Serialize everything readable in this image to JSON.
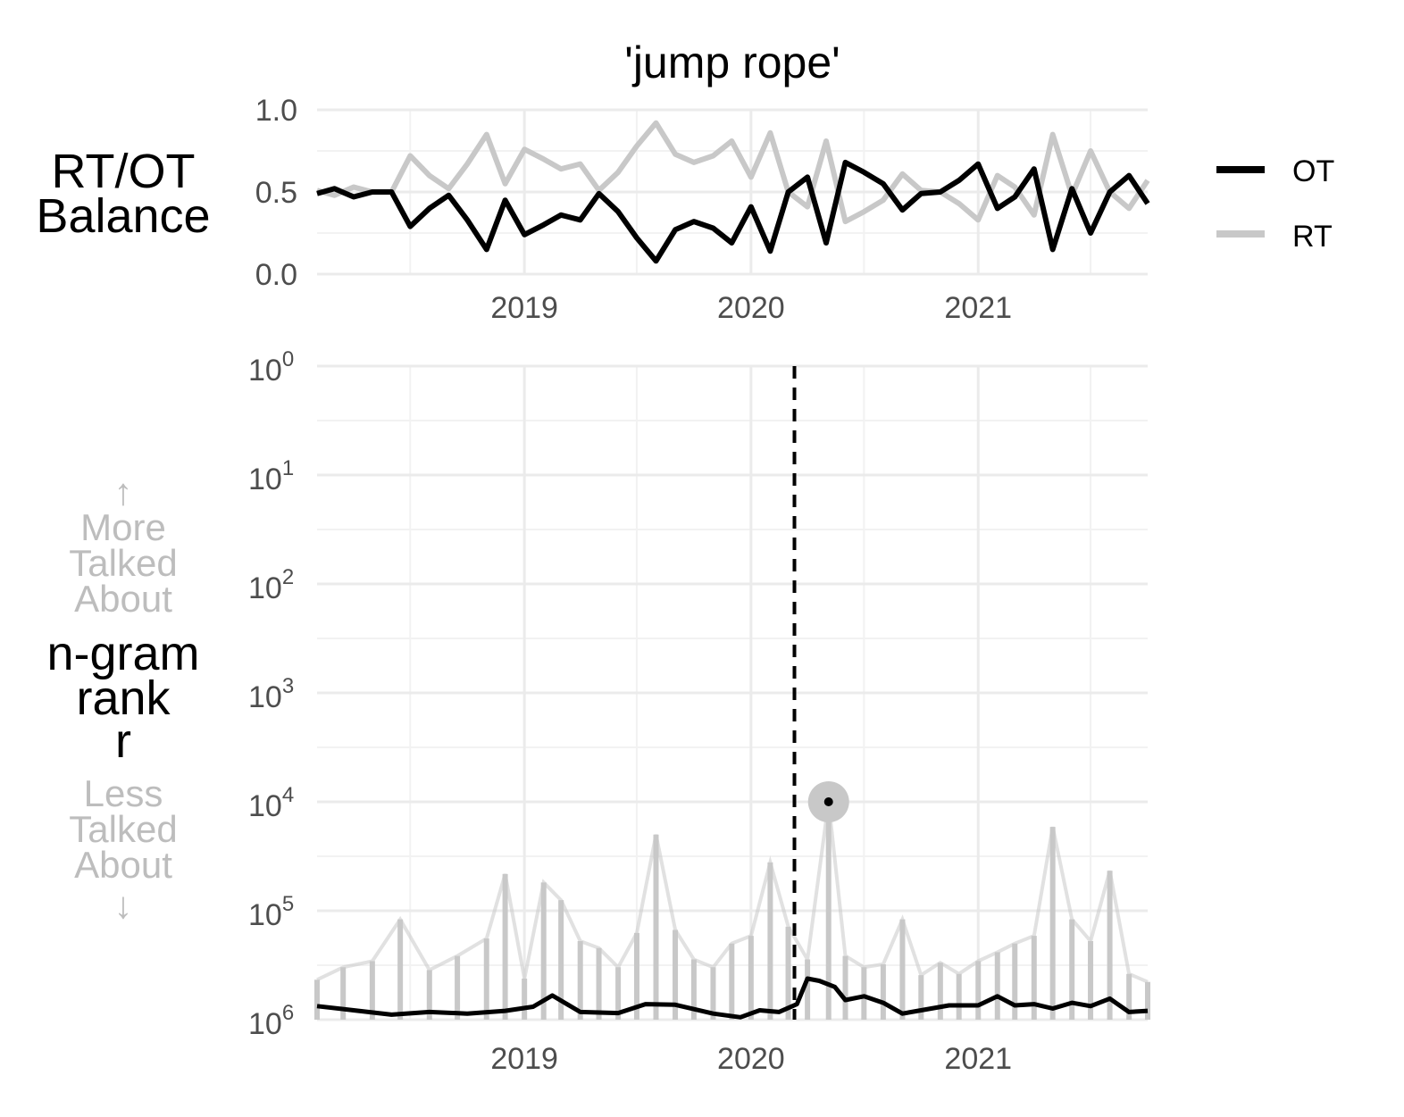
{
  "chart_data": [
    {
      "type": "line",
      "title": "'jump rope'",
      "ylabel_lines": [
        "RT/OT",
        "Balance"
      ],
      "ylim": [
        0,
        1
      ],
      "y_ticks": [
        "0.0",
        "0.5",
        "1.0"
      ],
      "y_tick_values": [
        0,
        0.5,
        1
      ],
      "xlim": [
        "2018-02-01",
        "2021-10-01"
      ],
      "x_ticks": [
        "2019",
        "2020",
        "2021"
      ],
      "x_tick_dates": [
        "2019-01-01",
        "2020-01-01",
        "2021-01-01"
      ],
      "grid": true,
      "legend_position": "right",
      "x": [
        "2018-02",
        "2018-03",
        "2018-04",
        "2018-05",
        "2018-06",
        "2018-07",
        "2018-08",
        "2018-09",
        "2018-10",
        "2018-11",
        "2018-12",
        "2019-01",
        "2019-02",
        "2019-03",
        "2019-04",
        "2019-05",
        "2019-06",
        "2019-07",
        "2019-08",
        "2019-09",
        "2019-10",
        "2019-11",
        "2019-12",
        "2020-01",
        "2020-02",
        "2020-03",
        "2020-04",
        "2020-05",
        "2020-06",
        "2020-07",
        "2020-08",
        "2020-09",
        "2020-10",
        "2020-11",
        "2020-12",
        "2021-01",
        "2021-02",
        "2021-03",
        "2021-04",
        "2021-05",
        "2021-06",
        "2021-07",
        "2021-08",
        "2021-09",
        "2021-10"
      ],
      "series": [
        {
          "name": "OT",
          "color": "#000000",
          "values": [
            0.49,
            0.52,
            0.47,
            0.5,
            0.5,
            0.29,
            0.4,
            0.48,
            0.33,
            0.15,
            0.45,
            0.24,
            0.3,
            0.36,
            0.33,
            0.49,
            0.38,
            0.22,
            0.08,
            0.27,
            0.32,
            0.28,
            0.19,
            0.41,
            0.14,
            0.5,
            0.59,
            0.19,
            0.68,
            0.62,
            0.55,
            0.39,
            0.49,
            0.5,
            0.57,
            0.67,
            0.4,
            0.47,
            0.64,
            0.15,
            0.52,
            0.25,
            0.5,
            0.6,
            0.43
          ]
        },
        {
          "name": "RT",
          "color": "#c8c8c8",
          "values": [
            0.51,
            0.48,
            0.53,
            0.5,
            0.5,
            0.72,
            0.6,
            0.52,
            0.67,
            0.85,
            0.55,
            0.76,
            0.7,
            0.64,
            0.67,
            0.51,
            0.62,
            0.78,
            0.92,
            0.73,
            0.68,
            0.72,
            0.81,
            0.59,
            0.86,
            0.5,
            0.41,
            0.81,
            0.32,
            0.38,
            0.45,
            0.61,
            0.51,
            0.5,
            0.43,
            0.33,
            0.6,
            0.53,
            0.36,
            0.85,
            0.48,
            0.75,
            0.5,
            0.4,
            0.57
          ]
        }
      ]
    },
    {
      "type": "line",
      "ylabel_top": [
        "↑",
        "More",
        "Talked",
        "About"
      ],
      "ylabel_lines": [
        "n-gram",
        "rank",
        "r"
      ],
      "ylabel_bottom": [
        "Less",
        "Talked",
        "About",
        "↓"
      ],
      "y_scale": "log10",
      "y_reversed": true,
      "ylim": [
        1,
        1000000
      ],
      "y_tick_bases": [
        "10",
        "10",
        "10",
        "10",
        "10",
        "10",
        "10"
      ],
      "y_tick_exponents": [
        "0",
        "1",
        "2",
        "3",
        "4",
        "5",
        "6"
      ],
      "xlim": [
        "2018-02-01",
        "2021-10-01"
      ],
      "x_ticks": [
        "2019",
        "2020",
        "2021"
      ],
      "x_tick_dates": [
        "2019-01-01",
        "2020-01-01",
        "2021-01-01"
      ],
      "grid": true,
      "vline_date": "2020-03-11",
      "peak_marker": {
        "date": "2020-05-05",
        "rank": 10000
      },
      "series": [
        {
          "name": "OT",
          "color": "#000000",
          "x": [
            "2018-02-01",
            "2018-04-01",
            "2018-06-01",
            "2018-08-01",
            "2018-10-01",
            "2018-12-01",
            "2019-01-15",
            "2019-02-15",
            "2019-04-01",
            "2019-06-01",
            "2019-07-15",
            "2019-09-01",
            "2019-11-01",
            "2019-12-15",
            "2020-01-15",
            "2020-02-15",
            "2020-03-15",
            "2020-04-01",
            "2020-04-20",
            "2020-05-15",
            "2020-06-01",
            "2020-07-01",
            "2020-08-01",
            "2020-09-01",
            "2020-10-01",
            "2020-11-15",
            "2021-01-01",
            "2021-02-01",
            "2021-03-01",
            "2021-04-01",
            "2021-05-01",
            "2021-06-01",
            "2021-07-01",
            "2021-08-01",
            "2021-09-01",
            "2021-10-01"
          ],
          "values": [
            750000,
            820000,
            900000,
            850000,
            880000,
            830000,
            760000,
            600000,
            850000,
            870000,
            720000,
            730000,
            880000,
            950000,
            820000,
            850000,
            720000,
            420000,
            440000,
            500000,
            660000,
            610000,
            700000,
            880000,
            820000,
            740000,
            740000,
            610000,
            740000,
            720000,
            790000,
            700000,
            750000,
            640000,
            850000,
            830000
          ]
        },
        {
          "name": "RT",
          "color": "#c8c8c8",
          "x": [
            "2018-02-01",
            "2018-03-15",
            "2018-05-01",
            "2018-06-15",
            "2018-08-01",
            "2018-09-15",
            "2018-11-01",
            "2018-12-01",
            "2019-01-01",
            "2019-02-01",
            "2019-03-01",
            "2019-04-01",
            "2019-05-01",
            "2019-06-01",
            "2019-07-01",
            "2019-08-01",
            "2019-09-01",
            "2019-10-01",
            "2019-11-01",
            "2019-12-01",
            "2020-01-01",
            "2020-02-01",
            "2020-03-01",
            "2020-04-01",
            "2020-05-05",
            "2020-06-01",
            "2020-07-01",
            "2020-08-01",
            "2020-09-01",
            "2020-10-01",
            "2020-11-01",
            "2020-12-01",
            "2021-01-01",
            "2021-02-01",
            "2021-03-01",
            "2021-04-01",
            "2021-05-01",
            "2021-06-01",
            "2021-07-01",
            "2021-08-01",
            "2021-09-01",
            "2021-10-01"
          ],
          "values": [
            430000,
            330000,
            290000,
            120000,
            350000,
            260000,
            180000,
            46000,
            420000,
            55000,
            80000,
            190000,
            220000,
            330000,
            160000,
            20000,
            150000,
            280000,
            330000,
            200000,
            170000,
            36000,
            140000,
            280000,
            10000,
            260000,
            330000,
            310000,
            120000,
            390000,
            300000,
            380000,
            290000,
            240000,
            200000,
            170000,
            17000,
            120000,
            190000,
            43000,
            380000,
            450000
          ]
        }
      ]
    }
  ],
  "legend": {
    "items": [
      {
        "label": "OT",
        "color": "#000000"
      },
      {
        "label": "RT",
        "color": "#c8c8c8"
      }
    ]
  }
}
